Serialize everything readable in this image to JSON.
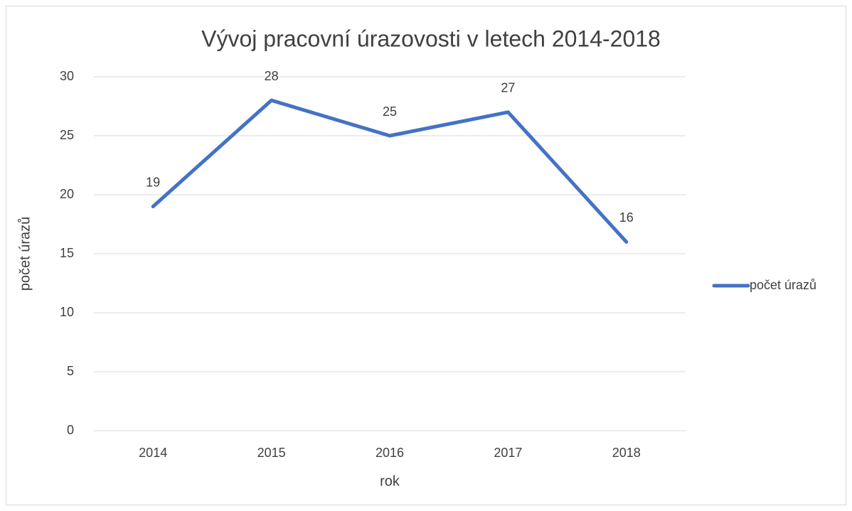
{
  "chart_data": {
    "type": "line",
    "title": "Vývoj pracovní úrazovosti v letech 2014-2018",
    "x_label": "rok",
    "y_label": "počet úrazů",
    "categories": [
      "2014",
      "2015",
      "2016",
      "2017",
      "2018"
    ],
    "series": [
      {
        "name": "počet úrazů",
        "color": "#4472c4",
        "values": [
          19,
          28,
          25,
          27,
          16
        ]
      }
    ],
    "ylim": [
      0,
      30
    ],
    "yticks": [
      0,
      5,
      10,
      15,
      20,
      25,
      30
    ],
    "grid": true,
    "legend": "right"
  }
}
